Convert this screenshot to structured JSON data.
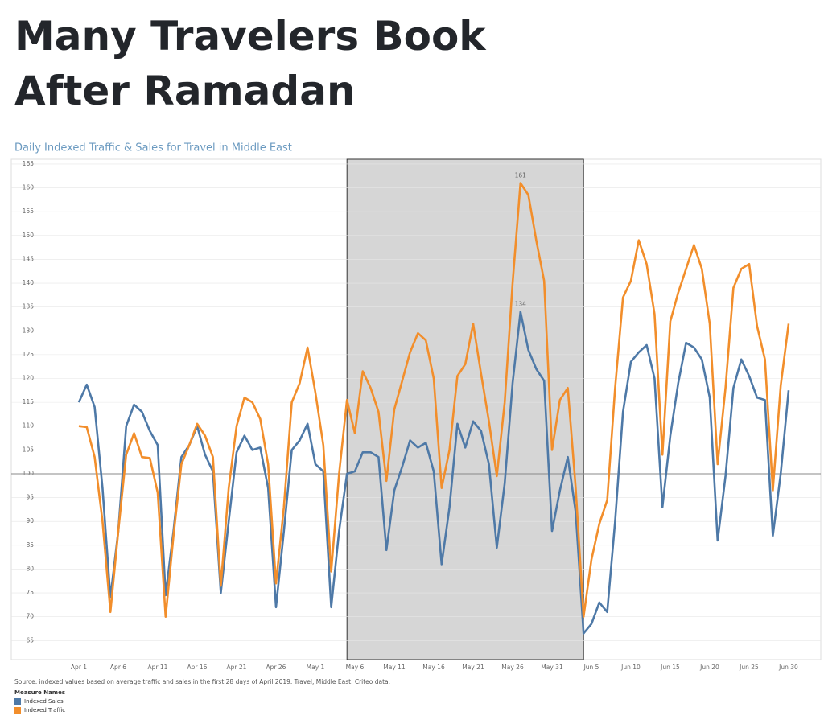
{
  "chart_data": {
    "type": "line",
    "title_lines": [
      "Many Travelers Book",
      "After Ramadan"
    ],
    "subtitle": "Daily Indexed Traffic & Sales for Travel in Middle East",
    "source": "Source: indexed values based on average traffic and sales in the first 28 days of April 2019. Travel, Middle East. Criteo data.",
    "legend_title": "Measure Names",
    "categories": [
      "Apr 1",
      null,
      null,
      null,
      null,
      "Apr 6",
      null,
      null,
      null,
      null,
      "Apr 11",
      null,
      null,
      null,
      null,
      "Apr 16",
      null,
      null,
      null,
      null,
      "Apr 21",
      null,
      null,
      null,
      null,
      "Apr 26",
      null,
      null,
      null,
      null,
      "May 1",
      null,
      null,
      null,
      null,
      "May 6",
      null,
      null,
      null,
      null,
      "May 11",
      null,
      null,
      null,
      null,
      "May 16",
      null,
      null,
      null,
      null,
      "May 21",
      null,
      null,
      null,
      null,
      "May 26",
      null,
      null,
      null,
      null,
      "May 31",
      null,
      null,
      null,
      null,
      "Jun 5",
      null,
      null,
      null,
      null,
      "Jun 10",
      null,
      null,
      null,
      null,
      "Jun 15",
      null,
      null,
      null,
      null,
      "Jun 20",
      null,
      null,
      null,
      null,
      "Jun 25",
      null,
      null,
      null,
      null,
      "Jun 30"
    ],
    "series": [
      {
        "name": "Indexed Sales",
        "color": "#4e79a7",
        "values": [
          115,
          118.7,
          114,
          97,
          74,
          88,
          110,
          114.5,
          113,
          109,
          106,
          74.5,
          88,
          103.5,
          106,
          110,
          104,
          100.5,
          75,
          90,
          104.5,
          108,
          105,
          105.5,
          97,
          72,
          88,
          105,
          107,
          110.5,
          102,
          100.5,
          72,
          88,
          100,
          100.5,
          104.5,
          104.5,
          103.5,
          84,
          96.5,
          101.5,
          107,
          105.5,
          106.5,
          100.5,
          81,
          93,
          110.5,
          105.5,
          111,
          109,
          102,
          84.5,
          98,
          119,
          134,
          126,
          122,
          119.5,
          88,
          96.5,
          103.5,
          92,
          66.5,
          68.5,
          73,
          71,
          90,
          113,
          123.5,
          125.5,
          127,
          120,
          93,
          108,
          119,
          127.5,
          126.5,
          124,
          116,
          86,
          99.5,
          118,
          124,
          120.5,
          116,
          115.5,
          87,
          100,
          117.5
        ]
      },
      {
        "name": "Indexed Traffic",
        "color": "#f28e2b",
        "values": [
          110,
          109.8,
          103.5,
          90,
          71,
          88,
          104,
          108.5,
          103.5,
          103.3,
          96,
          70,
          87,
          102,
          106,
          110.5,
          108,
          103.5,
          76.5,
          97,
          110,
          116,
          115,
          111.5,
          102,
          77,
          93,
          115,
          119,
          126.5,
          117,
          106,
          79.5,
          100,
          115.5,
          108.5,
          121.5,
          118,
          113,
          98.5,
          113.5,
          119.5,
          125.5,
          129.5,
          128,
          120,
          97,
          105,
          120.5,
          123,
          131.5,
          121,
          111,
          99.5,
          115,
          140,
          161,
          158.5,
          149,
          140.5,
          105,
          115.5,
          118,
          97,
          70,
          82,
          89.5,
          94.5,
          118,
          137,
          140.5,
          149,
          144,
          133.5,
          104,
          132,
          138,
          143,
          148,
          143,
          131.5,
          102,
          118,
          139,
          143,
          144,
          131,
          124,
          96.5,
          118.5,
          131.5
        ]
      }
    ],
    "labeled_points": [
      [
        1,
        56
      ],
      [
        0,
        56
      ]
    ],
    "shade": [
      34,
      64
    ],
    "reference_line": 100,
    "ylim": [
      61,
      166
    ],
    "yticks": [
      65,
      70,
      75,
      80,
      85,
      90,
      95,
      100,
      105,
      110,
      115,
      120,
      125,
      130,
      135,
      140,
      145,
      150,
      155,
      160,
      165
    ],
    "grid": true
  }
}
